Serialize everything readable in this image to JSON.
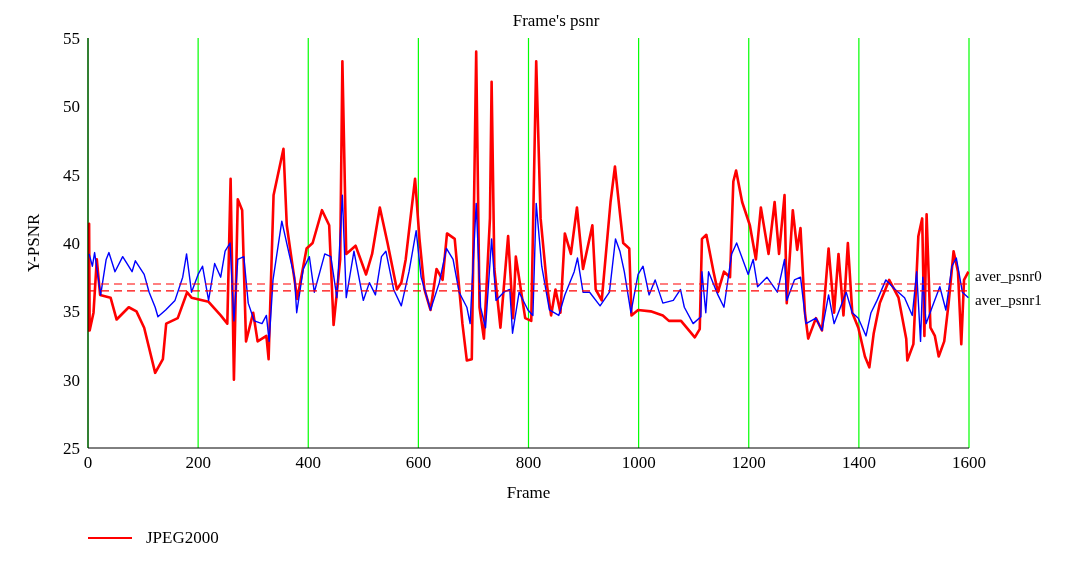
{
  "chart_data": {
    "type": "line",
    "title": "Frame's psnr",
    "xlabel": "Frame",
    "ylabel": "Y-PSNR",
    "xlim": [
      0,
      1600
    ],
    "xticks": [
      0,
      200,
      400,
      600,
      800,
      1000,
      1200,
      1400,
      1600
    ],
    "ylim": [
      25,
      55
    ],
    "yticks": [
      25,
      30,
      35,
      40,
      45,
      50,
      55
    ],
    "grid": true,
    "legend": "bottom",
    "ref_lines": [
      {
        "axis": "y",
        "value": 37.0,
        "label": "aver_psnr0",
        "color": "#ff0000",
        "line_style": "dashed"
      },
      {
        "axis": "y",
        "value": 36.5,
        "label": "aver_psnr1",
        "color": "#ff0000",
        "line_style": "dashed"
      }
    ],
    "series": [
      {
        "name": "JPEG2000",
        "color": "#ff0000",
        "x": [
          0,
          2,
          3,
          10,
          16,
          22,
          41,
          52,
          74,
          88,
          102,
          122,
          136,
          142,
          163,
          180,
          188,
          219,
          241,
          253,
          259,
          265,
          272,
          280,
          287,
          300,
          308,
          324,
          328,
          337,
          355,
          361,
          380,
          397,
          408,
          425,
          438,
          446,
          458,
          462,
          469,
          486,
          505,
          516,
          530,
          544,
          561,
          569,
          577,
          594,
          602,
          611,
          622,
          633,
          644,
          652,
          666,
          680,
          688,
          697,
          705,
          711,
          719,
          730,
          733,
          738,
          749,
          763,
          772,
          777,
          794,
          805,
          814,
          822,
          833,
          841,
          849,
          858,
          866,
          877,
          888,
          899,
          916,
          922,
          933,
          949,
          957,
          966,
          972,
          983,
          987,
          999,
          1022,
          1044,
          1055,
          1077,
          1102,
          1111,
          1115,
          1123,
          1136,
          1144,
          1155,
          1166,
          1172,
          1177,
          1188,
          1202,
          1213,
          1222,
          1236,
          1247,
          1255,
          1265,
          1269,
          1280,
          1288,
          1294,
          1302,
          1308,
          1322,
          1333,
          1345,
          1355,
          1363,
          1372,
          1380,
          1388,
          1399,
          1411,
          1419,
          1427,
          1438,
          1455,
          1472,
          1486,
          1488,
          1499,
          1508,
          1515,
          1519,
          1523,
          1530,
          1538,
          1545,
          1555,
          1563,
          1572,
          1580,
          1586,
          1591,
          1599
        ],
        "values": [
          33.5,
          41.4,
          33.6,
          34.9,
          38.8,
          36.2,
          36.0,
          34.4,
          35.3,
          35.0,
          33.8,
          30.5,
          31.5,
          34.1,
          34.5,
          36.4,
          36.0,
          35.7,
          34.7,
          34.1,
          44.7,
          30.0,
          43.2,
          42.4,
          32.8,
          34.9,
          32.8,
          33.2,
          31.5,
          43.5,
          46.9,
          41.3,
          35.9,
          39.6,
          40.0,
          42.4,
          41.3,
          34.0,
          38.8,
          53.3,
          39.2,
          39.8,
          37.7,
          39.2,
          42.6,
          40.0,
          36.6,
          37.1,
          38.8,
          44.7,
          40.3,
          36.6,
          35.1,
          38.1,
          37.3,
          40.7,
          40.3,
          34.1,
          31.4,
          31.5,
          54.0,
          35.3,
          33.0,
          41.8,
          51.8,
          38.1,
          33.8,
          40.5,
          34.5,
          39.0,
          34.5,
          34.3,
          53.3,
          41.8,
          37.1,
          34.7,
          36.6,
          34.9,
          40.7,
          39.2,
          42.6,
          38.1,
          41.3,
          36.6,
          35.8,
          43.0,
          45.6,
          42.2,
          40.0,
          39.6,
          34.7,
          35.1,
          35.0,
          34.7,
          34.3,
          34.3,
          33.1,
          33.7,
          40.3,
          40.6,
          37.9,
          36.4,
          37.9,
          37.5,
          44.5,
          45.3,
          43.0,
          41.3,
          38.8,
          42.6,
          39.2,
          43.0,
          39.2,
          43.5,
          35.6,
          42.4,
          39.5,
          41.1,
          34.9,
          33.0,
          34.5,
          33.6,
          39.6,
          34.9,
          39.2,
          34.7,
          40.0,
          34.9,
          33.8,
          31.7,
          30.9,
          33.4,
          35.6,
          37.3,
          36.0,
          33.0,
          31.4,
          32.6,
          40.5,
          41.8,
          33.2,
          42.1,
          33.8,
          33.2,
          31.7,
          32.8,
          35.6,
          39.4,
          37.9,
          32.6,
          37.3,
          37.9
        ]
      },
      {
        "color": "#0000ff",
        "x": [
          2,
          8,
          12,
          23,
          33,
          38,
          49,
          63,
          80,
          86,
          102,
          111,
          122,
          127,
          141,
          158,
          172,
          179,
          188,
          200,
          208,
          219,
          230,
          241,
          249,
          258,
          265,
          272,
          283,
          291,
          302,
          316,
          324,
          329,
          336,
          352,
          363,
          375,
          379,
          391,
          402,
          411,
          430,
          441,
          452,
          462,
          469,
          483,
          500,
          511,
          522,
          533,
          541,
          555,
          569,
          583,
          596,
          605,
          622,
          638,
          651,
          663,
          674,
          688,
          694,
          705,
          713,
          722,
          733,
          741,
          755,
          766,
          771,
          783,
          799,
          808,
          814,
          824,
          838,
          855,
          866,
          883,
          889,
          899,
          911,
          930,
          947,
          958,
          966,
          974,
          986,
          999,
          1008,
          1019,
          1030,
          1044,
          1063,
          1076,
          1083,
          1099,
          1113,
          1115,
          1122,
          1127,
          1144,
          1155,
          1169,
          1178,
          1199,
          1208,
          1216,
          1233,
          1252,
          1265,
          1269,
          1283,
          1294,
          1304,
          1322,
          1333,
          1345,
          1355,
          1377,
          1388,
          1399,
          1413,
          1422,
          1433,
          1449,
          1466,
          1483,
          1497,
          1505,
          1512,
          1516,
          1522,
          1533,
          1547,
          1558,
          1569,
          1577,
          1588,
          1599
        ],
        "values": [
          39.2,
          38.3,
          39.3,
          36.2,
          38.8,
          39.3,
          37.9,
          39.0,
          37.9,
          38.7,
          37.7,
          36.4,
          35.3,
          34.6,
          35.1,
          35.8,
          37.5,
          39.2,
          36.4,
          37.7,
          38.3,
          35.8,
          38.5,
          37.5,
          39.4,
          40.0,
          34.3,
          38.8,
          39.0,
          35.6,
          34.3,
          34.1,
          34.7,
          32.8,
          37.3,
          41.6,
          39.6,
          37.5,
          34.9,
          38.1,
          39.0,
          36.4,
          39.2,
          39.0,
          36.0,
          43.5,
          36.0,
          39.4,
          35.8,
          37.1,
          36.2,
          39.0,
          39.4,
          36.6,
          35.4,
          37.9,
          40.9,
          37.5,
          35.1,
          37.1,
          39.6,
          38.8,
          36.4,
          35.3,
          34.1,
          42.9,
          35.3,
          33.8,
          40.3,
          35.8,
          36.4,
          36.6,
          33.4,
          36.4,
          35.1,
          34.7,
          42.9,
          38.3,
          35.1,
          34.7,
          36.2,
          37.9,
          38.9,
          36.4,
          36.4,
          35.4,
          36.4,
          40.3,
          39.4,
          37.9,
          34.9,
          37.7,
          38.3,
          36.2,
          37.3,
          35.6,
          35.8,
          36.6,
          35.3,
          34.1,
          34.6,
          37.9,
          34.9,
          37.9,
          36.2,
          35.3,
          39.2,
          40.0,
          37.7,
          38.8,
          36.8,
          37.5,
          36.4,
          38.8,
          35.8,
          37.3,
          37.5,
          34.1,
          34.5,
          33.6,
          36.2,
          34.1,
          36.4,
          34.9,
          34.5,
          33.2,
          34.9,
          35.8,
          37.3,
          36.6,
          36.0,
          34.7,
          37.9,
          32.8,
          37.5,
          34.1,
          35.3,
          36.8,
          35.1,
          38.3,
          38.9,
          36.4,
          36.0
        ]
      }
    ]
  }
}
